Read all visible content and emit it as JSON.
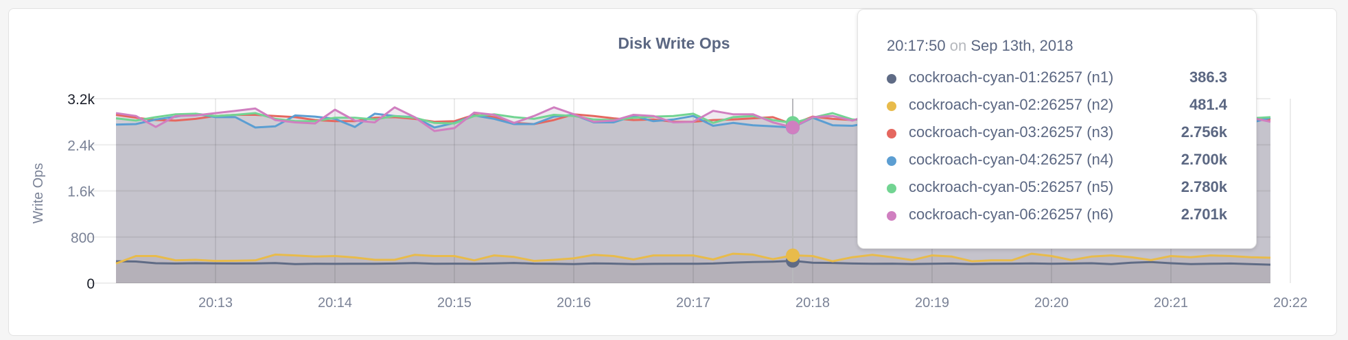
{
  "chart_data": {
    "type": "line",
    "title": "Disk Write Ops",
    "ylabel": "Write Ops",
    "xlabel": "",
    "ylim": [
      0,
      3200
    ],
    "yticks": [
      "0",
      "800",
      "1.6k",
      "2.4k",
      "3.2k"
    ],
    "ytick_values": [
      0,
      800,
      1600,
      2400,
      3200
    ],
    "xticks": [
      "20:13",
      "20:14",
      "20:15",
      "20:16",
      "20:17",
      "20:18",
      "20:19",
      "20:20",
      "20:21",
      "20:22"
    ],
    "x_start": "20:12:10",
    "x_end": "20:21:50",
    "x_interval_seconds": 10,
    "grid": true,
    "area_fill": true,
    "series": [
      {
        "name": "cockroach-cyan-01:26257 (n1)",
        "color": "#5f6b85",
        "values": [
          380,
          375,
          345,
          340,
          345,
          342,
          340,
          342,
          348,
          330,
          335,
          334,
          337,
          335,
          340,
          348,
          335,
          338,
          336,
          342,
          350,
          338,
          335,
          330,
          343,
          338,
          330,
          334,
          336,
          335,
          340,
          356,
          365,
          372,
          386.3,
          355,
          350,
          340,
          335,
          338,
          332,
          335,
          340,
          330,
          335,
          338,
          342,
          335,
          340,
          345,
          330,
          355,
          365,
          345,
          330,
          335,
          340,
          330,
          320
        ]
      },
      {
        "name": "cockroach-cyan-02:26257 (n2)",
        "color": "#e8bb4b",
        "values": [
          340,
          470,
          470,
          395,
          405,
          385,
          388,
          395,
          495,
          480,
          460,
          470,
          445,
          405,
          405,
          490,
          470,
          470,
          395,
          480,
          455,
          385,
          405,
          430,
          490,
          470,
          410,
          480,
          480,
          480,
          410,
          510,
          495,
          415,
          481.4,
          470,
          380,
          450,
          490,
          450,
          400,
          480,
          460,
          380,
          395,
          395,
          510,
          470,
          400,
          460,
          480,
          450,
          400,
          470,
          450,
          480,
          470,
          450,
          440
        ]
      },
      {
        "name": "cockroach-cyan-03:26257 (n3)",
        "color": "#e5675f",
        "values": [
          2920,
          2870,
          2830,
          2820,
          2850,
          2900,
          2920,
          2920,
          2900,
          2880,
          2830,
          2810,
          2810,
          2870,
          2880,
          2850,
          2800,
          2810,
          2920,
          2880,
          2780,
          2760,
          2830,
          2930,
          2900,
          2860,
          2830,
          2840,
          2800,
          2800,
          2830,
          2840,
          2860,
          2880,
          2756,
          2890,
          2850,
          2830,
          2870,
          2820,
          2850,
          2880,
          2830,
          2900,
          2870,
          2860,
          2820,
          2850,
          2880,
          2830,
          2880,
          2860,
          2820,
          2840,
          2870,
          2850,
          2830,
          2860,
          2840
        ]
      },
      {
        "name": "cockroach-cyan-04:26257 (n4)",
        "color": "#5c9ed2",
        "values": [
          2750,
          2760,
          2840,
          2890,
          2940,
          2880,
          2880,
          2700,
          2720,
          2910,
          2890,
          2850,
          2710,
          2940,
          2900,
          2880,
          2700,
          2780,
          2910,
          2850,
          2760,
          2760,
          2890,
          2920,
          2790,
          2790,
          2900,
          2810,
          2840,
          2900,
          2730,
          2780,
          2740,
          2720,
          2700,
          2870,
          2740,
          2730,
          2790,
          2800,
          2820,
          2780,
          2860,
          2800,
          2790,
          2900,
          2810,
          2780,
          2850,
          2830,
          2800,
          2860,
          2790,
          2770,
          2840,
          2820,
          2810,
          2780,
          2870
        ]
      },
      {
        "name": "cockroach-cyan-05:26257 (n5)",
        "color": "#72d492",
        "values": [
          2860,
          2820,
          2880,
          2930,
          2940,
          2900,
          2920,
          2950,
          2850,
          2810,
          2810,
          2870,
          2870,
          2840,
          2900,
          2870,
          2780,
          2770,
          2900,
          2930,
          2880,
          2850,
          2920,
          2900,
          2840,
          2830,
          2870,
          2890,
          2900,
          2940,
          2780,
          2880,
          2900,
          2830,
          2780,
          2870,
          2950,
          2840,
          2820,
          2810,
          2830,
          2870,
          2900,
          2840,
          2860,
          2890,
          2920,
          2850,
          2830,
          2860,
          2900,
          2840,
          2870,
          2850,
          2890,
          2870,
          2840,
          2860,
          2880
        ]
      },
      {
        "name": "cockroach-cyan-06:26257 (n6)",
        "color": "#d07fc0",
        "values": [
          2950,
          2900,
          2710,
          2900,
          2910,
          2950,
          2990,
          3030,
          2830,
          2790,
          2770,
          3010,
          2820,
          2790,
          3050,
          2880,
          2640,
          2690,
          2960,
          2920,
          2780,
          2900,
          3050,
          2930,
          2800,
          2820,
          2920,
          2900,
          2790,
          2800,
          2990,
          2930,
          2930,
          2790,
          2701,
          2880,
          2900,
          2820,
          2930,
          2870,
          2850,
          2900,
          2830,
          2870,
          2910,
          2880,
          2840,
          2860,
          2900,
          2850,
          2870,
          2890,
          2830,
          2880,
          2860,
          2850,
          2830,
          2870,
          2800
        ]
      }
    ],
    "hover_index": 34
  },
  "tooltip": {
    "time": "20:17:50",
    "on": "on",
    "date": "Sep 13th, 2018",
    "rows": [
      {
        "label": "cockroach-cyan-01:26257 (n1)",
        "value": "386.3",
        "color": "#5f6b85"
      },
      {
        "label": "cockroach-cyan-02:26257 (n2)",
        "value": "481.4",
        "color": "#e8bb4b"
      },
      {
        "label": "cockroach-cyan-03:26257 (n3)",
        "value": "2.756k",
        "color": "#e5675f"
      },
      {
        "label": "cockroach-cyan-04:26257 (n4)",
        "value": "2.700k",
        "color": "#5c9ed2"
      },
      {
        "label": "cockroach-cyan-05:26257 (n5)",
        "value": "2.780k",
        "color": "#72d492"
      },
      {
        "label": "cockroach-cyan-06:26257 (n6)",
        "value": "2.701k",
        "color": "#d07fc0"
      }
    ]
  }
}
